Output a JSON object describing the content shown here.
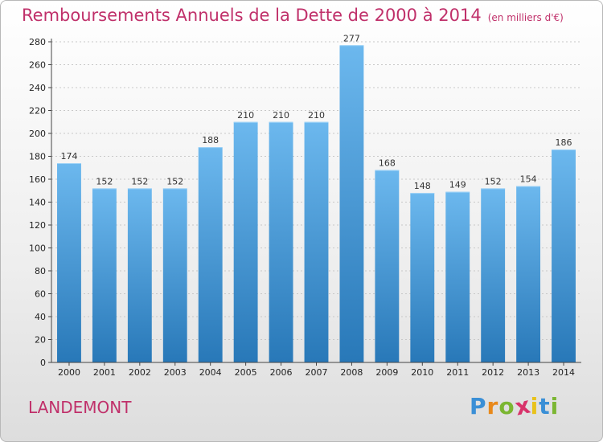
{
  "title": "Remboursements Annuels de la Dette de 2000 à 2014",
  "unit": "(en milliers d'€)",
  "commune": "LANDEMONT",
  "logo": {
    "letters": [
      "P",
      "r",
      "o",
      "x",
      "i",
      "t",
      "i"
    ],
    "colors": [
      "#3a8fd6",
      "#e8891b",
      "#7bb632",
      "#d8326a",
      "#e8c21b",
      "#3a8fd6",
      "#7bb632"
    ]
  },
  "colors": {
    "bar_top": "#6cb8ee",
    "bar_bottom": "#2878b8",
    "title": "#c0306a"
  },
  "chart_data": {
    "type": "bar",
    "categories": [
      "2000",
      "2001",
      "2002",
      "2003",
      "2004",
      "2005",
      "2006",
      "2007",
      "2008",
      "2009",
      "2010",
      "2011",
      "2012",
      "2013",
      "2014"
    ],
    "values": [
      174,
      152,
      152,
      152,
      188,
      210,
      210,
      210,
      277,
      168,
      148,
      149,
      152,
      154,
      186
    ],
    "ylim": [
      0,
      280
    ],
    "yticks": [
      0,
      20,
      40,
      60,
      80,
      100,
      120,
      140,
      160,
      180,
      200,
      220,
      240,
      260,
      280
    ],
    "grid": true,
    "xlabel": "",
    "ylabel": ""
  }
}
